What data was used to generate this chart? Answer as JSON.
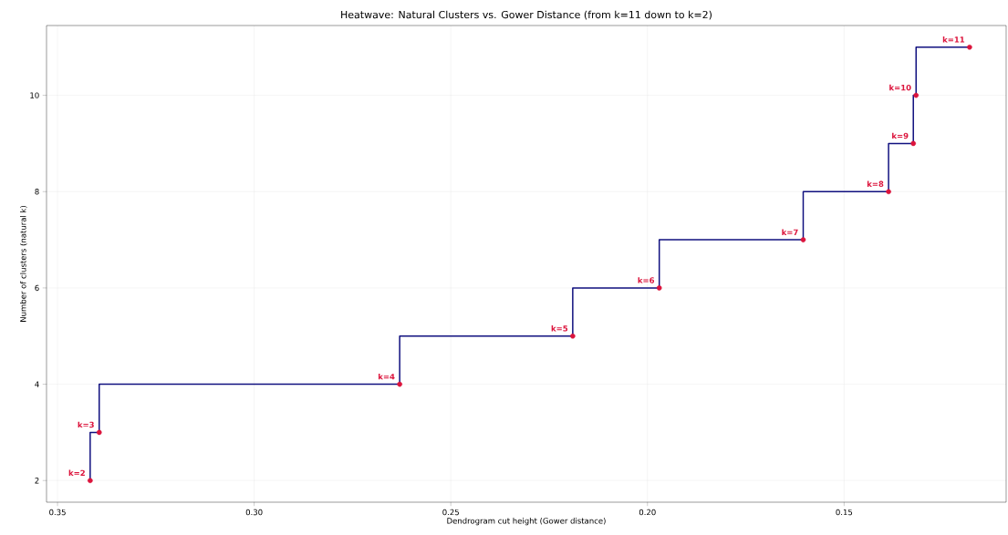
{
  "chart_data": {
    "type": "step",
    "title": "Heatwave: Natural Clusters vs. Gower Distance (from k=11 down to k=2)",
    "xlabel": "Dendrogram cut height (Gower distance)",
    "ylabel": "Number of clusters (natural k)",
    "x": [
      0.3417,
      0.3394,
      0.263,
      0.219,
      0.197,
      0.1604,
      0.1387,
      0.1324,
      0.1317,
      0.1181
    ],
    "series": [
      {
        "color": "#10107f",
        "marker": "none",
        "values": [
          2,
          3,
          4,
          5,
          6,
          7,
          8,
          9,
          10,
          11
        ]
      },
      {
        "type": "scatter",
        "color": "#dc143c",
        "marker": "circle",
        "values": [
          2,
          3,
          4,
          5,
          6,
          7,
          8,
          9,
          10,
          11
        ]
      }
    ],
    "xlim": [
      0.3528,
      0.1088
    ],
    "ylim": [
      1.55,
      11.45
    ],
    "xticks": [
      {
        "value": 0.35,
        "label": "0.35"
      },
      {
        "value": 0.3,
        "label": "0.30"
      },
      {
        "value": 0.25,
        "label": "0.25"
      },
      {
        "value": 0.2,
        "label": "0.20"
      },
      {
        "value": 0.15,
        "label": "0.15"
      }
    ],
    "yticks": [
      2,
      4,
      6,
      8,
      10
    ],
    "grid": true,
    "annotations": [
      {
        "text": "k=2",
        "x": 0.3417,
        "y": 2
      },
      {
        "text": "k=3",
        "x": 0.3394,
        "y": 3
      },
      {
        "text": "k=4",
        "x": 0.263,
        "y": 4
      },
      {
        "text": "k=5",
        "x": 0.219,
        "y": 5
      },
      {
        "text": "k=6",
        "x": 0.197,
        "y": 6
      },
      {
        "text": "k=7",
        "x": 0.1604,
        "y": 7
      },
      {
        "text": "k=8",
        "x": 0.1387,
        "y": 8
      },
      {
        "text": "k=9",
        "x": 0.1324,
        "y": 9
      },
      {
        "text": "k=10",
        "x": 0.1317,
        "y": 10
      },
      {
        "text": "k=11",
        "x": 0.1181,
        "y": 11
      }
    ]
  }
}
